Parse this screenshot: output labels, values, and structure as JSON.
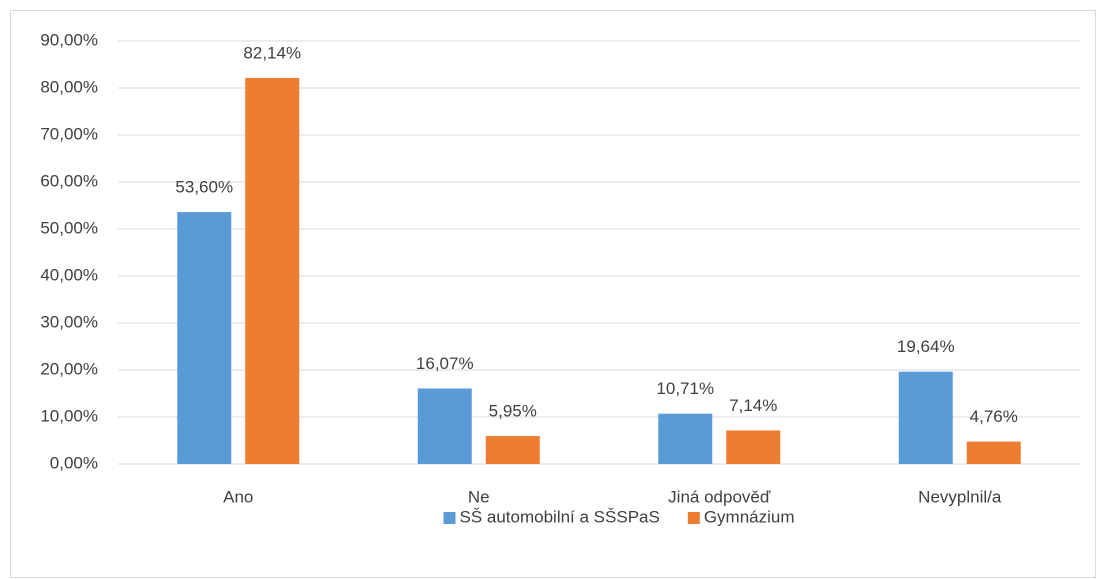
{
  "chart_data": {
    "type": "bar",
    "categories": [
      "Ano",
      "Ne",
      "Jiná odpověď",
      "Nevyplnil/a"
    ],
    "series": [
      {
        "name": "SŠ automobilní a SŠSPaS",
        "color": "#5b9bd5",
        "values": [
          53.6,
          16.07,
          10.71,
          19.64
        ],
        "value_labels": [
          "53,60%",
          "16,07%",
          "10,71%",
          "19,64%"
        ]
      },
      {
        "name": "Gymnázium",
        "color": "#ed7d31",
        "values": [
          82.14,
          5.95,
          7.14,
          4.76
        ],
        "value_labels": [
          "82,14%",
          "5,95%",
          "7,14%",
          "4,76%"
        ]
      }
    ],
    "ylim": [
      0,
      90
    ],
    "yticks": [
      {
        "value": 0,
        "label": "0,00%"
      },
      {
        "value": 10,
        "label": "10,00%"
      },
      {
        "value": 20,
        "label": "20,00%"
      },
      {
        "value": 30,
        "label": "30,00%"
      },
      {
        "value": 40,
        "label": "40,00%"
      },
      {
        "value": 50,
        "label": "50,00%"
      },
      {
        "value": 60,
        "label": "60,00%"
      },
      {
        "value": 70,
        "label": "70,00%"
      },
      {
        "value": 80,
        "label": "80,00%"
      },
      {
        "value": 90,
        "label": "90,00%"
      }
    ],
    "grid": true,
    "legend": "bottom"
  }
}
